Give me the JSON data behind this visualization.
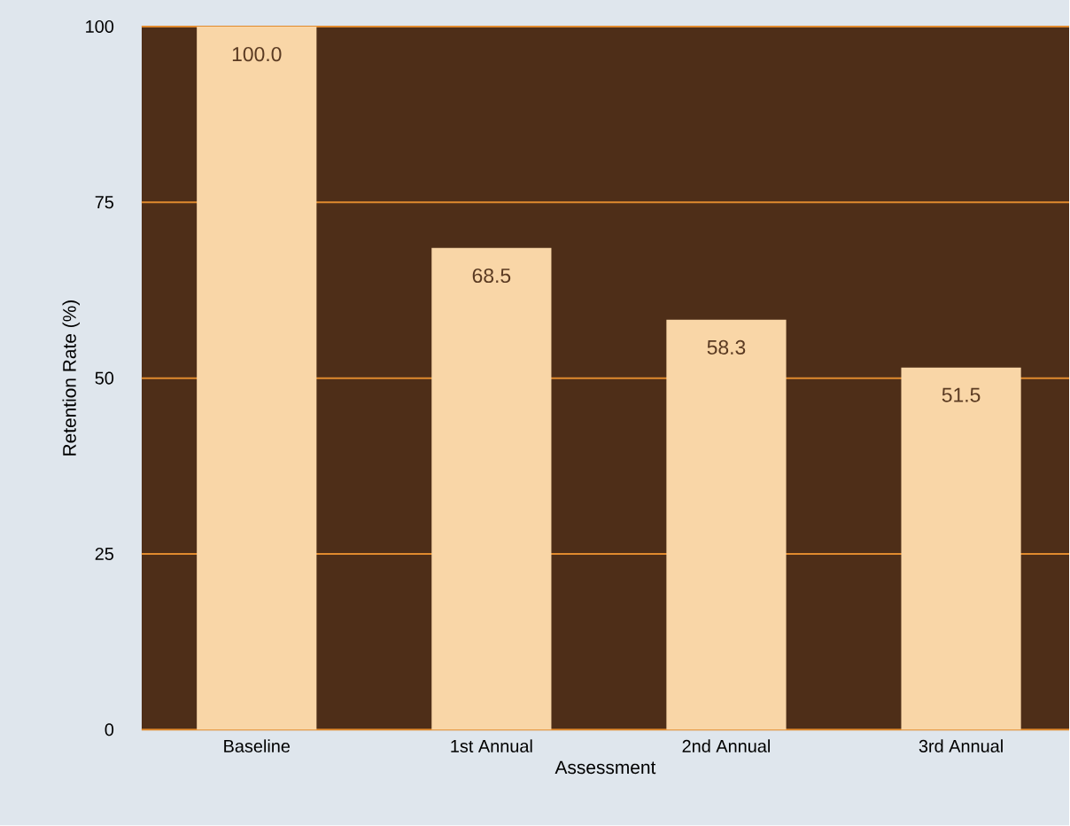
{
  "chart_data": {
    "type": "bar",
    "xlabel": "Assessment",
    "ylabel": "Retention Rate (%)",
    "categories": [
      "Baseline",
      "1st Annual",
      "2nd Annual",
      "3rd Annual"
    ],
    "values": [
      100.0,
      68.5,
      58.3,
      51.5
    ],
    "color": "#f9d6a7",
    "value_labels": [
      "100.0",
      "68.5",
      "58.3",
      "51.5"
    ],
    "ylim": [
      0,
      100
    ],
    "yticks": [
      0,
      25,
      50,
      75,
      100
    ],
    "grid": "y"
  }
}
